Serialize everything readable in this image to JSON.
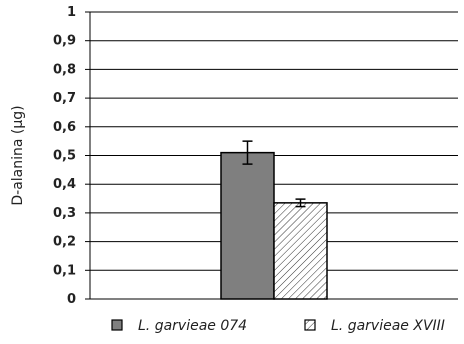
{
  "chart_data": {
    "type": "bar",
    "ylabel": "D-alanina (µg)",
    "xlabel": "",
    "ylim": [
      0,
      1
    ],
    "yticks": [
      "0",
      "0,1",
      "0,2",
      "0,3",
      "0,4",
      "0,5",
      "0,6",
      "0,7",
      "0,8",
      "0,9",
      "1"
    ],
    "grid": true,
    "legend_position": "bottom",
    "series": [
      {
        "name": "L. garvieae 074",
        "value": 0.51,
        "error": 0.04,
        "color": "#7f7f7f",
        "pattern": "solid"
      },
      {
        "name": "L. garvieae XVIII",
        "value": 0.335,
        "error": 0.013,
        "color": "#ffffff",
        "pattern": "diagonal-hatch"
      }
    ]
  }
}
